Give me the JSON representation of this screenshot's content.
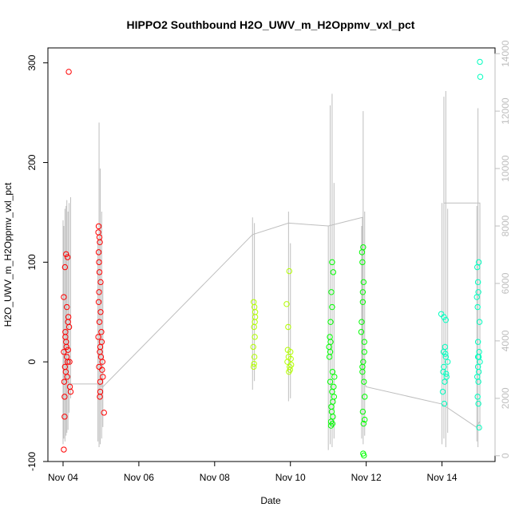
{
  "chart_data": {
    "type": "scatter",
    "title": "HIPPO2 Southbound H2O_UWV_m_H2Oppmv_vxl_pct",
    "xlabel": "Date",
    "ylabel": "H2O_UWV_m_H2Oppmv_vxl_pct",
    "x_ticks": [
      "Nov 04",
      "Nov 06",
      "Nov 08",
      "Nov 10",
      "Nov 12",
      "Nov 14"
    ],
    "x_tick_days": [
      4,
      6,
      8,
      10,
      12,
      14
    ],
    "xlim_days": [
      3.6,
      15.4
    ],
    "ylim": [
      -100,
      315
    ],
    "y_ticks": [
      -100,
      0,
      100,
      200,
      300
    ],
    "y2lim": [
      -200,
      14200
    ],
    "y2_ticks": [
      0,
      2000,
      4000,
      6000,
      8000,
      10000,
      12000,
      14000
    ],
    "y2_color": "#bebebe",
    "grid": false,
    "legend": "none",
    "series": [
      {
        "color": "#ff0000",
        "points": [
          [
            4.05,
            -5
          ],
          [
            4.02,
            10
          ],
          [
            4.08,
            20
          ],
          [
            4.03,
            -20
          ],
          [
            4.1,
            5
          ],
          [
            4.06,
            30
          ],
          [
            4.04,
            -35
          ],
          [
            4.12,
            0
          ],
          [
            4.07,
            -10
          ],
          [
            4.09,
            15
          ],
          [
            4.02,
            65
          ],
          [
            4.1,
            55
          ],
          [
            4.14,
            45
          ],
          [
            4.13,
            40
          ],
          [
            4.16,
            35
          ],
          [
            4.08,
            108
          ],
          [
            4.12,
            105
          ],
          [
            4.05,
            95
          ],
          [
            4.04,
            -55
          ],
          [
            4.02,
            -88
          ],
          [
            4.15,
            291
          ],
          [
            4.18,
            -25
          ],
          [
            4.2,
            -30
          ],
          [
            4.17,
            0
          ],
          [
            4.06,
            25
          ],
          [
            4.11,
            -15
          ],
          [
            4.13,
            12
          ],
          [
            4.95,
            -5
          ],
          [
            4.97,
            10
          ],
          [
            4.93,
            25
          ],
          [
            4.98,
            -20
          ],
          [
            4.96,
            40
          ],
          [
            4.94,
            60
          ],
          [
            4.99,
            80
          ],
          [
            4.95,
            100
          ],
          [
            4.97,
            120
          ],
          [
            4.96,
            125
          ],
          [
            4.94,
            136
          ],
          [
            4.93,
            130
          ],
          [
            5.0,
            5
          ],
          [
            5.02,
            20
          ],
          [
            5.05,
            -15
          ],
          [
            5.04,
            0
          ],
          [
            4.98,
            -30
          ],
          [
            4.97,
            -35
          ],
          [
            5.08,
            -51
          ],
          [
            4.96,
            90
          ],
          [
            4.95,
            70
          ],
          [
            4.99,
            50
          ],
          [
            5.01,
            30
          ],
          [
            4.94,
            110
          ],
          [
            5.03,
            -8
          ],
          [
            4.98,
            15
          ]
        ]
      },
      {
        "color": "#b3ff00",
        "points": [
          [
            9.05,
            55
          ],
          [
            9.03,
            60
          ],
          [
            9.07,
            45
          ],
          [
            9.04,
            35
          ],
          [
            9.06,
            25
          ],
          [
            9.02,
            15
          ],
          [
            9.05,
            5
          ],
          [
            9.04,
            -2
          ],
          [
            9.03,
            -5
          ],
          [
            9.06,
            40
          ],
          [
            9.07,
            50
          ],
          [
            9.95,
            5
          ],
          [
            9.92,
            0
          ],
          [
            9.98,
            -5
          ],
          [
            10.0,
            10
          ],
          [
            9.96,
            -10
          ],
          [
            10.02,
            -3
          ],
          [
            9.9,
            58
          ],
          [
            9.94,
            35
          ],
          [
            9.97,
            91
          ],
          [
            10.01,
            3
          ],
          [
            9.99,
            -8
          ],
          [
            9.93,
            12
          ]
        ]
      },
      {
        "color": "#00ff00",
        "points": [
          [
            11.05,
            -20
          ],
          [
            11.1,
            -30
          ],
          [
            11.08,
            -45
          ],
          [
            11.12,
            -55
          ],
          [
            11.07,
            -60
          ],
          [
            11.15,
            -35
          ],
          [
            11.02,
            15
          ],
          [
            11.04,
            25
          ],
          [
            11.06,
            40
          ],
          [
            11.1,
            55
          ],
          [
            11.08,
            70
          ],
          [
            11.1,
            100
          ],
          [
            11.13,
            90
          ],
          [
            11.05,
            10
          ],
          [
            11.11,
            -10
          ],
          [
            11.14,
            -25
          ],
          [
            11.12,
            -40
          ],
          [
            11.09,
            -50
          ],
          [
            11.03,
            5
          ],
          [
            11.16,
            -15
          ],
          [
            11.07,
            -64
          ],
          [
            11.11,
            -62
          ],
          [
            11.06,
            20
          ],
          [
            11.9,
            -10
          ],
          [
            11.92,
            0
          ],
          [
            11.95,
            20
          ],
          [
            11.88,
            40
          ],
          [
            11.91,
            60
          ],
          [
            11.93,
            80
          ],
          [
            11.9,
            100
          ],
          [
            11.92,
            115
          ],
          [
            11.89,
            110
          ],
          [
            11.94,
            -20
          ],
          [
            11.96,
            -35
          ],
          [
            11.91,
            -50
          ],
          [
            11.93,
            -62
          ],
          [
            11.92,
            -92
          ],
          [
            11.94,
            -94
          ],
          [
            11.9,
            -5
          ],
          [
            11.95,
            10
          ],
          [
            11.87,
            30
          ],
          [
            11.91,
            70
          ],
          [
            11.96,
            -58
          ]
        ]
      },
      {
        "color": "#00ffbf",
        "points": [
          [
            14.05,
            -5
          ],
          [
            14.1,
            5
          ],
          [
            14.08,
            15
          ],
          [
            14.12,
            -15
          ],
          [
            14.07,
            -20
          ],
          [
            14.15,
            0
          ],
          [
            14.03,
            -10
          ],
          [
            14.09,
            8
          ],
          [
            13.98,
            48
          ],
          [
            14.05,
            45
          ],
          [
            14.1,
            42
          ],
          [
            14.02,
            -30
          ],
          [
            14.06,
            -42
          ],
          [
            14.11,
            -12
          ],
          [
            14.04,
            10
          ],
          [
            14.95,
            -5
          ],
          [
            14.97,
            5
          ],
          [
            14.93,
            -15
          ],
          [
            14.98,
            10
          ],
          [
            14.96,
            -20
          ],
          [
            15.0,
            0
          ],
          [
            14.94,
            55
          ],
          [
            14.92,
            65
          ],
          [
            14.95,
            80
          ],
          [
            14.97,
            100
          ],
          [
            14.93,
            95
          ],
          [
            14.96,
            70
          ],
          [
            14.99,
            40
          ],
          [
            14.95,
            20
          ],
          [
            14.94,
            -35
          ],
          [
            14.96,
            -42
          ],
          [
            14.98,
            -66
          ],
          [
            15.0,
            301
          ],
          [
            15.01,
            286
          ],
          [
            14.97,
            -10
          ],
          [
            14.95,
            5
          ]
        ]
      }
    ],
    "gray_trace": {
      "color": "#bebebe",
      "axis": "y2",
      "spikes": [
        {
          "x": 4.0,
          "low": 400,
          "high": 8200
        },
        {
          "x": 4.02,
          "low": 600,
          "high": 8000
        },
        {
          "x": 4.05,
          "low": 500,
          "high": 8600
        },
        {
          "x": 4.08,
          "low": 700,
          "high": 8700
        },
        {
          "x": 4.1,
          "low": 800,
          "high": 8900
        },
        {
          "x": 4.13,
          "low": 900,
          "high": 8500
        },
        {
          "x": 4.16,
          "low": 1500,
          "high": 8800
        },
        {
          "x": 4.2,
          "low": 2000,
          "high": 9000
        },
        {
          "x": 4.92,
          "low": 500,
          "high": 7500
        },
        {
          "x": 4.95,
          "low": 300,
          "high": 11600
        },
        {
          "x": 4.98,
          "low": 400,
          "high": 10000
        },
        {
          "x": 5.02,
          "low": 600,
          "high": 8500
        },
        {
          "x": 5.05,
          "low": 1000,
          "high": 6000
        },
        {
          "x": 9.0,
          "low": 2300,
          "high": 8300
        },
        {
          "x": 9.05,
          "low": 2600,
          "high": 8100
        },
        {
          "x": 9.95,
          "low": 1900,
          "high": 8500
        },
        {
          "x": 10.0,
          "low": 2000,
          "high": 7400
        },
        {
          "x": 11.0,
          "low": 200,
          "high": 8000
        },
        {
          "x": 11.05,
          "low": 400,
          "high": 12200
        },
        {
          "x": 11.1,
          "low": 300,
          "high": 12600
        },
        {
          "x": 11.15,
          "low": 600,
          "high": 9500
        },
        {
          "x": 11.88,
          "low": 600,
          "high": 8000
        },
        {
          "x": 11.92,
          "low": 400,
          "high": 12000
        },
        {
          "x": 11.96,
          "low": 700,
          "high": 8500
        },
        {
          "x": 14.0,
          "low": 400,
          "high": 8800
        },
        {
          "x": 14.05,
          "low": 600,
          "high": 12500
        },
        {
          "x": 14.1,
          "low": 300,
          "high": 12700
        },
        {
          "x": 14.15,
          "low": 800,
          "high": 8600
        },
        {
          "x": 14.92,
          "low": 500,
          "high": 8700
        },
        {
          "x": 14.95,
          "low": 300,
          "high": 12100
        },
        {
          "x": 15.0,
          "low": 900,
          "high": 8600
        }
      ],
      "connector": [
        [
          4.0,
          2700
        ],
        [
          4.2,
          2500
        ],
        [
          4.9,
          2500
        ],
        [
          5.05,
          2400
        ],
        [
          9.0,
          7700
        ],
        [
          9.95,
          8100
        ],
        [
          11.0,
          8000
        ],
        [
          11.9,
          8300
        ],
        [
          11.9,
          2700
        ],
        [
          12.0,
          2400
        ],
        [
          14.0,
          1800
        ],
        [
          14.9,
          1000
        ],
        [
          15.0,
          1200
        ],
        [
          15.0,
          8800
        ],
        [
          14.05,
          8800
        ]
      ]
    }
  }
}
